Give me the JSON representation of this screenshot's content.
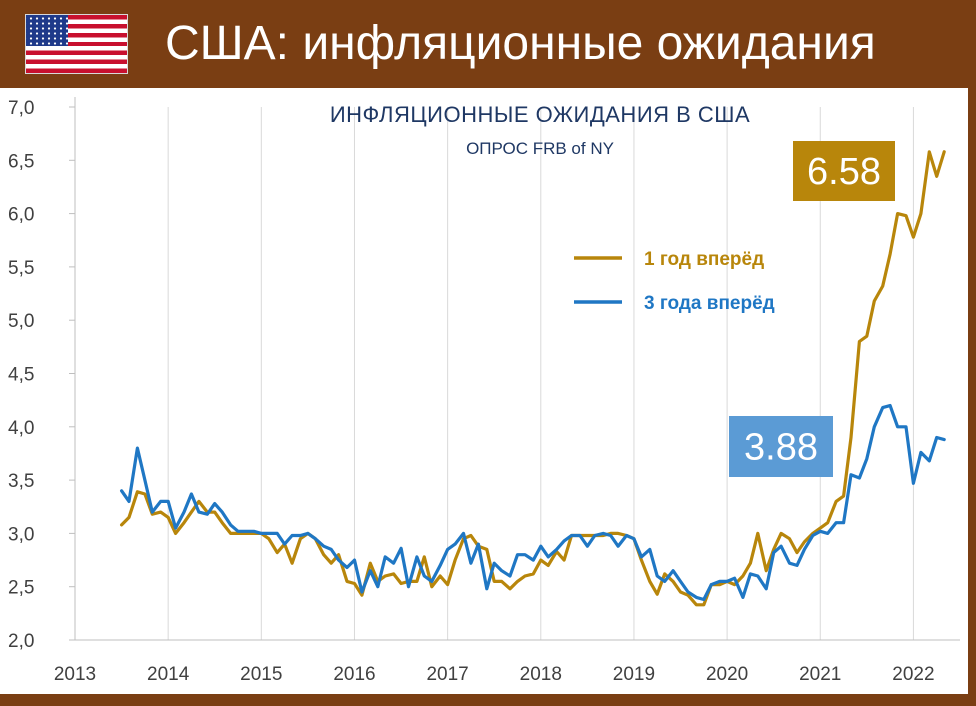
{
  "header": {
    "title": "США: инфляционные ожидания",
    "flag_icon": "us-flag-icon"
  },
  "colors": {
    "background": "#7a3e13",
    "panel": "#ffffff",
    "one_year": "#b8860b",
    "three_year": "#1f77c4",
    "badge_one_year": "#b8860b",
    "badge_three_year": "#5b9bd5",
    "title": "#1f3864",
    "grid": "#d9d9d9"
  },
  "chart_data": {
    "type": "line",
    "title": "ИНФЛЯЦИОННЫЕ ОЖИДАНИЯ В США",
    "subtitle": "ОПРОС FRB of NY",
    "xlabel": "",
    "ylabel": "",
    "xlim": [
      2013,
      2022.5
    ],
    "ylim": [
      2.0,
      7.0
    ],
    "yticks": [
      "7,0",
      "6,5",
      "6,0",
      "5,5",
      "5,0",
      "4,5",
      "4,0",
      "3,5",
      "3,0",
      "2,5",
      "2,0"
    ],
    "ytick_values": [
      7.0,
      6.5,
      6.0,
      5.5,
      5.0,
      4.5,
      4.0,
      3.5,
      3.0,
      2.5,
      2.0
    ],
    "xticks": [
      "2013",
      "2014",
      "2015",
      "2016",
      "2017",
      "2018",
      "2019",
      "2020",
      "2021",
      "2022"
    ],
    "xtick_values": [
      2013,
      2014,
      2015,
      2016,
      2017,
      2018,
      2019,
      2020,
      2021,
      2022
    ],
    "grid": "vertical",
    "legend_position": "center-right",
    "series": [
      {
        "name": "1 год вперёд",
        "x": [
          2013.5,
          2013.58,
          2013.67,
          2013.75,
          2013.83,
          2013.92,
          2014.0,
          2014.08,
          2014.17,
          2014.25,
          2014.33,
          2014.42,
          2014.5,
          2014.58,
          2014.67,
          2014.75,
          2014.83,
          2014.92,
          2015.0,
          2015.08,
          2015.17,
          2015.25,
          2015.33,
          2015.42,
          2015.5,
          2015.58,
          2015.67,
          2015.75,
          2015.83,
          2015.92,
          2016.0,
          2016.08,
          2016.17,
          2016.25,
          2016.33,
          2016.42,
          2016.5,
          2016.58,
          2016.67,
          2016.75,
          2016.83,
          2016.92,
          2017.0,
          2017.08,
          2017.17,
          2017.25,
          2017.33,
          2017.42,
          2017.5,
          2017.58,
          2017.67,
          2017.75,
          2017.83,
          2017.92,
          2018.0,
          2018.08,
          2018.17,
          2018.25,
          2018.33,
          2018.42,
          2018.5,
          2018.58,
          2018.67,
          2018.75,
          2018.83,
          2018.92,
          2019.0,
          2019.08,
          2019.17,
          2019.25,
          2019.33,
          2019.42,
          2019.5,
          2019.58,
          2019.67,
          2019.75,
          2019.83,
          2019.92,
          2020.0,
          2020.08,
          2020.17,
          2020.25,
          2020.33,
          2020.42,
          2020.5,
          2020.58,
          2020.67,
          2020.75,
          2020.83,
          2020.92,
          2021.0,
          2021.08,
          2021.17,
          2021.25,
          2021.33,
          2021.42,
          2021.5,
          2021.58,
          2021.67,
          2021.75,
          2021.83,
          2021.92,
          2022.0,
          2022.08,
          2022.17,
          2022.25,
          2022.33
        ],
        "values": [
          3.08,
          3.15,
          3.39,
          3.37,
          3.18,
          3.2,
          3.15,
          3.0,
          3.1,
          3.2,
          3.3,
          3.2,
          3.2,
          3.1,
          3.0,
          3.0,
          3.0,
          3.0,
          3.0,
          2.95,
          2.82,
          2.9,
          2.72,
          2.95,
          3.0,
          2.95,
          2.8,
          2.72,
          2.8,
          2.55,
          2.53,
          2.42,
          2.72,
          2.55,
          2.6,
          2.62,
          2.53,
          2.55,
          2.55,
          2.78,
          2.5,
          2.6,
          2.52,
          2.75,
          2.95,
          2.98,
          2.88,
          2.85,
          2.55,
          2.55,
          2.48,
          2.55,
          2.6,
          2.62,
          2.75,
          2.7,
          2.83,
          2.75,
          2.98,
          2.98,
          2.98,
          2.98,
          2.98,
          3.0,
          3.0,
          2.98,
          2.95,
          2.75,
          2.55,
          2.43,
          2.62,
          2.55,
          2.45,
          2.42,
          2.33,
          2.33,
          2.52,
          2.52,
          2.55,
          2.52,
          2.6,
          2.72,
          3.0,
          2.65,
          2.85,
          3.0,
          2.95,
          2.82,
          2.92,
          3.0,
          3.05,
          3.1,
          3.3,
          3.35,
          3.9,
          4.8,
          4.85,
          5.18,
          5.32,
          5.62,
          6.0,
          5.98,
          5.78,
          6.0,
          6.58,
          6.35,
          6.58
        ]
      },
      {
        "name": "3 года вперёд",
        "x": [
          2013.5,
          2013.58,
          2013.67,
          2013.75,
          2013.83,
          2013.92,
          2014.0,
          2014.08,
          2014.17,
          2014.25,
          2014.33,
          2014.42,
          2014.5,
          2014.58,
          2014.67,
          2014.75,
          2014.83,
          2014.92,
          2015.0,
          2015.08,
          2015.17,
          2015.25,
          2015.33,
          2015.42,
          2015.5,
          2015.58,
          2015.67,
          2015.75,
          2015.83,
          2015.92,
          2016.0,
          2016.08,
          2016.17,
          2016.25,
          2016.33,
          2016.42,
          2016.5,
          2016.58,
          2016.67,
          2016.75,
          2016.83,
          2016.92,
          2017.0,
          2017.08,
          2017.17,
          2017.25,
          2017.33,
          2017.42,
          2017.5,
          2017.58,
          2017.67,
          2017.75,
          2017.83,
          2017.92,
          2018.0,
          2018.08,
          2018.17,
          2018.25,
          2018.33,
          2018.42,
          2018.5,
          2018.58,
          2018.67,
          2018.75,
          2018.83,
          2018.92,
          2019.0,
          2019.08,
          2019.17,
          2019.25,
          2019.33,
          2019.42,
          2019.5,
          2019.58,
          2019.67,
          2019.75,
          2019.83,
          2019.92,
          2020.0,
          2020.08,
          2020.17,
          2020.25,
          2020.33,
          2020.42,
          2020.5,
          2020.58,
          2020.67,
          2020.75,
          2020.83,
          2020.92,
          2021.0,
          2021.08,
          2021.17,
          2021.25,
          2021.33,
          2021.42,
          2021.5,
          2021.58,
          2021.67,
          2021.75,
          2021.83,
          2021.92,
          2022.0,
          2022.08,
          2022.17,
          2022.25,
          2022.33
        ],
        "values": [
          3.4,
          3.3,
          3.8,
          3.5,
          3.2,
          3.3,
          3.3,
          3.05,
          3.2,
          3.37,
          3.2,
          3.18,
          3.28,
          3.2,
          3.08,
          3.02,
          3.02,
          3.02,
          3.0,
          3.0,
          3.0,
          2.9,
          2.98,
          2.98,
          3.0,
          2.95,
          2.88,
          2.85,
          2.75,
          2.68,
          2.75,
          2.45,
          2.65,
          2.5,
          2.78,
          2.72,
          2.86,
          2.5,
          2.78,
          2.6,
          2.55,
          2.7,
          2.85,
          2.9,
          3.0,
          2.72,
          2.9,
          2.48,
          2.72,
          2.65,
          2.6,
          2.8,
          2.8,
          2.75,
          2.88,
          2.78,
          2.85,
          2.93,
          2.98,
          2.98,
          2.88,
          2.98,
          3.0,
          2.98,
          2.88,
          2.98,
          2.95,
          2.78,
          2.85,
          2.6,
          2.55,
          2.65,
          2.55,
          2.45,
          2.4,
          2.38,
          2.52,
          2.55,
          2.55,
          2.58,
          2.4,
          2.62,
          2.6,
          2.48,
          2.82,
          2.88,
          2.72,
          2.7,
          2.85,
          2.98,
          3.02,
          3.0,
          3.1,
          3.1,
          3.55,
          3.52,
          3.7,
          4.0,
          4.18,
          4.2,
          4.0,
          4.0,
          3.47,
          3.76,
          3.68,
          3.9,
          3.88
        ]
      }
    ],
    "annotations": [
      {
        "series": "1 год вперёд",
        "text": "6.58"
      },
      {
        "series": "3 года вперёд",
        "text": "3.88"
      }
    ]
  }
}
